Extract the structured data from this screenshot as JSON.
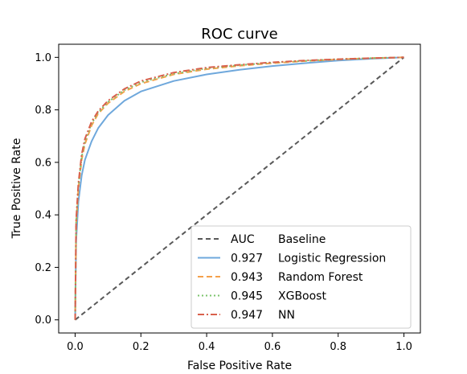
{
  "chart_data": {
    "type": "line",
    "title": "ROC curve",
    "xlabel": "False Positive Rate",
    "ylabel": "True Positive Rate",
    "xlim": [
      -0.05,
      1.05
    ],
    "ylim": [
      -0.05,
      1.05
    ],
    "xticks": [
      "0.0",
      "0.2",
      "0.4",
      "0.6",
      "0.8",
      "1.0"
    ],
    "yticks": [
      "0.0",
      "0.2",
      "0.4",
      "0.6",
      "0.8",
      "1.0"
    ],
    "xtick_values": [
      0.0,
      0.2,
      0.4,
      0.6,
      0.8,
      1.0
    ],
    "ytick_values": [
      0.0,
      0.2,
      0.4,
      0.6,
      0.8,
      1.0
    ],
    "grid": false,
    "legend_position": "lower-right",
    "series": [
      {
        "name": "Baseline",
        "auc_label": "AUC",
        "color": "#595959",
        "dash": "6,4",
        "x": [
          0.0,
          1.0
        ],
        "y": [
          0.0,
          1.0
        ]
      },
      {
        "name": "Logistic Regression",
        "auc_label": "0.927",
        "color": "#6fa8dc",
        "dash": "",
        "x": [
          0.0,
          0.003,
          0.01,
          0.02,
          0.03,
          0.05,
          0.07,
          0.1,
          0.15,
          0.2,
          0.3,
          0.4,
          0.5,
          0.6,
          0.7,
          0.8,
          0.9,
          1.0
        ],
        "y": [
          0.0,
          0.3,
          0.45,
          0.55,
          0.61,
          0.68,
          0.73,
          0.78,
          0.835,
          0.87,
          0.91,
          0.935,
          0.953,
          0.967,
          0.978,
          0.988,
          0.995,
          1.0
        ]
      },
      {
        "name": "Random Forest",
        "auc_label": "0.943",
        "color": "#f5a04a",
        "dash": "7,4",
        "x": [
          0.0,
          0.003,
          0.01,
          0.02,
          0.03,
          0.05,
          0.07,
          0.1,
          0.15,
          0.2,
          0.3,
          0.4,
          0.5,
          0.6,
          0.7,
          0.8,
          0.9,
          1.0
        ],
        "y": [
          0.0,
          0.36,
          0.5,
          0.61,
          0.67,
          0.74,
          0.785,
          0.825,
          0.87,
          0.9,
          0.935,
          0.955,
          0.968,
          0.978,
          0.986,
          0.992,
          0.997,
          1.0
        ]
      },
      {
        "name": "XGBoost",
        "auc_label": "0.945",
        "color": "#7cc46c",
        "dash": "2,3",
        "x": [
          0.0,
          0.003,
          0.01,
          0.02,
          0.03,
          0.05,
          0.07,
          0.1,
          0.15,
          0.2,
          0.3,
          0.4,
          0.5,
          0.6,
          0.7,
          0.8,
          0.9,
          1.0
        ],
        "y": [
          0.0,
          0.37,
          0.51,
          0.62,
          0.68,
          0.748,
          0.79,
          0.83,
          0.875,
          0.905,
          0.938,
          0.958,
          0.97,
          0.98,
          0.987,
          0.993,
          0.997,
          1.0
        ]
      },
      {
        "name": "NN",
        "auc_label": "0.947",
        "color": "#d9604c",
        "dash": "8,3,2,3",
        "x": [
          0.0,
          0.003,
          0.01,
          0.02,
          0.03,
          0.05,
          0.07,
          0.1,
          0.15,
          0.2,
          0.3,
          0.4,
          0.5,
          0.6,
          0.7,
          0.8,
          0.9,
          1.0
        ],
        "y": [
          0.0,
          0.38,
          0.52,
          0.63,
          0.69,
          0.755,
          0.795,
          0.835,
          0.88,
          0.91,
          0.942,
          0.961,
          0.972,
          0.981,
          0.988,
          0.993,
          0.997,
          1.0
        ]
      }
    ]
  }
}
